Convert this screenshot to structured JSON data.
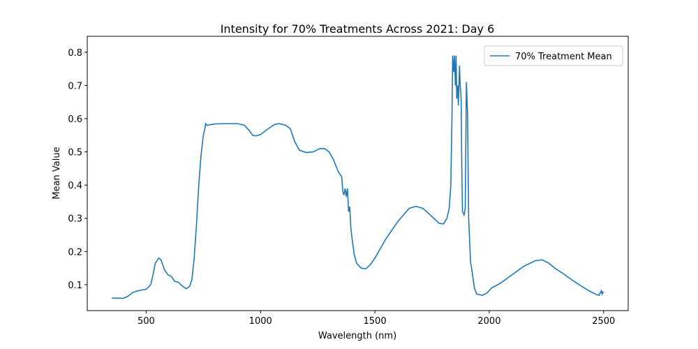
{
  "chart_data": {
    "type": "line",
    "title": "Intensity for 70% Treatments Across 2021: Day 6",
    "xlabel": "Wavelength (nm)",
    "ylabel": "Mean Value",
    "x": [
      350,
      400,
      420,
      440,
      460,
      480,
      500,
      520,
      530,
      540,
      555,
      565,
      580,
      595,
      610,
      625,
      640,
      660,
      675,
      690,
      700,
      710,
      720,
      730,
      740,
      750,
      757,
      760,
      765,
      800,
      850,
      900,
      930,
      950,
      965,
      980,
      1000,
      1030,
      1060,
      1080,
      1110,
      1130,
      1150,
      1170,
      1200,
      1230,
      1260,
      1280,
      1300,
      1320,
      1340,
      1355,
      1360,
      1365,
      1370,
      1375,
      1380,
      1385,
      1390,
      1395,
      1400,
      1410,
      1420,
      1440,
      1460,
      1480,
      1500,
      1550,
      1600,
      1650,
      1680,
      1710,
      1750,
      1780,
      1800,
      1815,
      1825,
      1832,
      1837,
      1840,
      1845,
      1848,
      1852,
      1855,
      1858,
      1862,
      1865,
      1870,
      1873,
      1877,
      1880,
      1883,
      1890,
      1895,
      1900,
      1905,
      1910,
      1918,
      1925,
      1935,
      1945,
      1970,
      1990,
      2010,
      2050,
      2100,
      2150,
      2200,
      2230,
      2260,
      2290,
      2320,
      2360,
      2400,
      2440,
      2470,
      2480,
      2485,
      2490,
      2493,
      2497,
      2500
    ],
    "series": [
      {
        "name": "70% Treatment Mean",
        "color": "#1f77b4",
        "values": [
          0.06,
          0.059,
          0.065,
          0.076,
          0.081,
          0.084,
          0.086,
          0.1,
          0.13,
          0.165,
          0.18,
          0.175,
          0.145,
          0.13,
          0.125,
          0.11,
          0.108,
          0.095,
          0.088,
          0.095,
          0.115,
          0.18,
          0.28,
          0.4,
          0.49,
          0.55,
          0.57,
          0.585,
          0.58,
          0.584,
          0.585,
          0.585,
          0.58,
          0.565,
          0.55,
          0.548,
          0.552,
          0.568,
          0.582,
          0.585,
          0.58,
          0.57,
          0.53,
          0.505,
          0.498,
          0.5,
          0.51,
          0.51,
          0.5,
          0.475,
          0.44,
          0.425,
          0.38,
          0.37,
          0.39,
          0.365,
          0.39,
          0.32,
          0.335,
          0.27,
          0.24,
          0.19,
          0.165,
          0.15,
          0.148,
          0.16,
          0.18,
          0.24,
          0.29,
          0.33,
          0.336,
          0.33,
          0.305,
          0.285,
          0.283,
          0.3,
          0.33,
          0.4,
          0.6,
          0.79,
          0.74,
          0.79,
          0.7,
          0.79,
          0.66,
          0.7,
          0.64,
          0.76,
          0.7,
          0.66,
          0.45,
          0.32,
          0.31,
          0.33,
          0.71,
          0.62,
          0.3,
          0.17,
          0.14,
          0.09,
          0.072,
          0.068,
          0.075,
          0.09,
          0.105,
          0.13,
          0.155,
          0.172,
          0.175,
          0.165,
          0.148,
          0.135,
          0.115,
          0.097,
          0.08,
          0.07,
          0.068,
          0.075,
          0.082,
          0.072,
          0.078,
          0.075
        ]
      }
    ],
    "xlim": [
      242.5,
      2607.5
    ],
    "ylim": [
      0.022,
      0.848
    ],
    "xticks": [
      500,
      1000,
      1500,
      2000,
      2500
    ],
    "yticks": [
      0.1,
      0.2,
      0.3,
      0.4,
      0.5,
      0.6,
      0.7,
      0.8
    ],
    "legend": "upper right"
  }
}
